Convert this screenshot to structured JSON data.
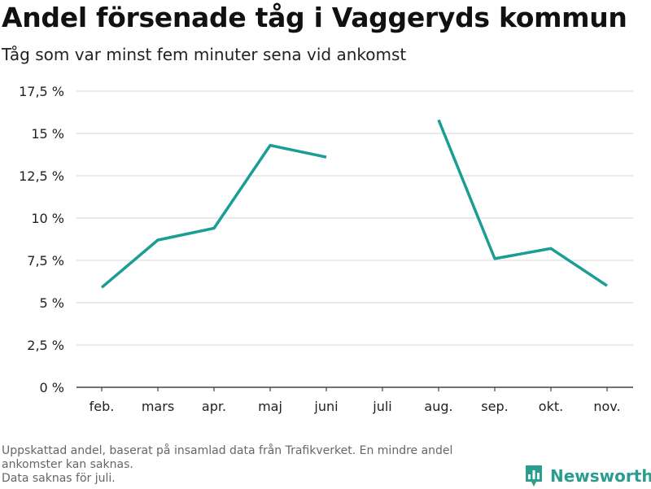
{
  "header": {
    "title": "Andel försenade tåg i Vaggeryds kommun",
    "subtitle": "Tåg som var minst fem minuter sena vid ankomst"
  },
  "footnote": {
    "line1": "Uppskattad andel, baserat på insamlad data från Trafikverket. En mindre andel",
    "line2": "ankomster kan saknas.",
    "line3": "Data saknas för juli."
  },
  "brand": {
    "name": "Newsworthy",
    "logo_icon": "bar-chart-logo-icon",
    "color": "#2a9d8f"
  },
  "chart_data": {
    "type": "line",
    "categories": [
      "feb.",
      "mars",
      "apr.",
      "maj",
      "juni",
      "juli",
      "aug.",
      "sep.",
      "okt.",
      "nov."
    ],
    "series": [
      {
        "values": [
          5.9,
          8.7,
          9.4,
          14.3,
          13.6,
          null,
          15.8,
          7.6,
          8.2,
          6.0
        ],
        "color": "#1a9e94"
      }
    ],
    "y_ticks": [
      0,
      2.5,
      5,
      7.5,
      10,
      12.5,
      15,
      17.5
    ],
    "y_tick_labels": [
      "0 %",
      "2,5 %",
      "5 %",
      "7,5 %",
      "10 %",
      "12,5 %",
      "15 %",
      "17,5 %"
    ],
    "ylim": [
      0,
      17.5
    ],
    "ylabel": "",
    "xlabel": "",
    "grid": true,
    "gap_categories": [
      "juli"
    ]
  }
}
